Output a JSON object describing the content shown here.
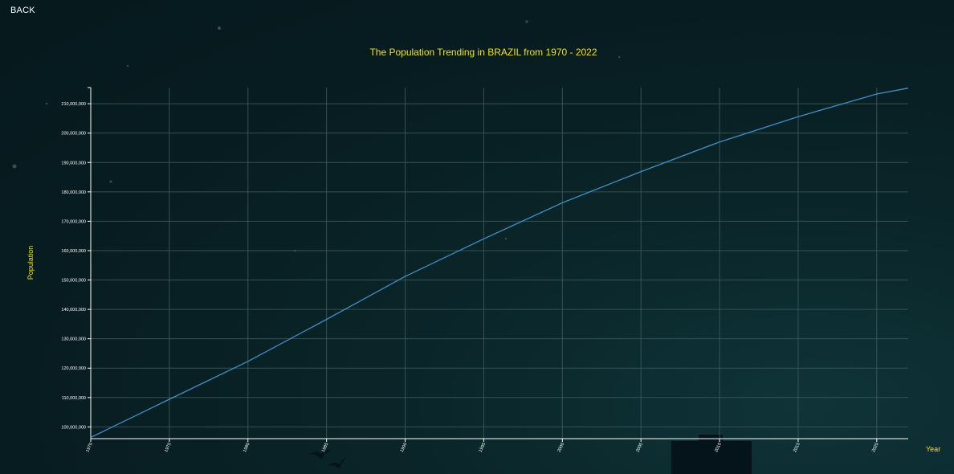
{
  "nav": {
    "back_label": "BACK"
  },
  "colors": {
    "title": "#f2e21a",
    "line": "#3f8fc8",
    "grid": "#3d5a5e",
    "tick_text": "#ffffff",
    "background": "#071c20"
  },
  "chart_data": {
    "type": "line",
    "title": "The Population Trending in BRAZIL from 1970 - 2022",
    "xlabel": "Year",
    "ylabel": "Population",
    "xlim": [
      1970,
      2022
    ],
    "ylim": [
      96000000,
      215500000
    ],
    "grid": true,
    "x_ticks": [
      1970,
      1975,
      1980,
      1985,
      1990,
      1995,
      2000,
      2005,
      2010,
      2015,
      2020
    ],
    "y_ticks": [
      100000000,
      110000000,
      120000000,
      130000000,
      140000000,
      150000000,
      160000000,
      170000000,
      180000000,
      190000000,
      200000000,
      210000000
    ],
    "series": [
      {
        "x": [
          1970,
          1975,
          1980,
          1985,
          1990,
          1995,
          2000,
          2005,
          2010,
          2015,
          2020,
          2022
        ],
        "values": [
          96400000,
          109400000,
          122300000,
          136600000,
          151200000,
          164000000,
          176300000,
          186900000,
          197000000,
          205600000,
          213300000,
          215300000
        ]
      }
    ]
  }
}
